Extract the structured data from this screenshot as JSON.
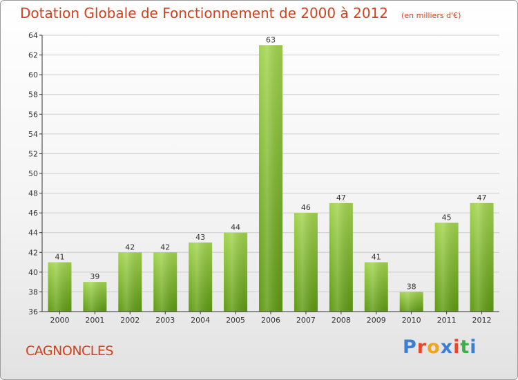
{
  "header": {
    "title": "Dotation Globale de Fonctionnement de 2000 à 2012",
    "subtitle": "(en milliers d'€)"
  },
  "footer": {
    "commune": "CAGNONCLES",
    "brand": "Proxiti",
    "brand_colors": [
      "#3b7fd0",
      "#e8462a",
      "#f0a420",
      "#3b7fd0",
      "#e8462a",
      "#3bb04a",
      "#3b7fd0"
    ]
  },
  "colors": {
    "bar_top": "#a2d44e",
    "bar_bottom": "#5e9a12",
    "title": "#d2401e",
    "grid": "#cccccc",
    "axis": "#333333"
  },
  "chart_data": {
    "type": "bar",
    "title": "Dotation Globale de Fonctionnement de 2000 à 2012",
    "subtitle": "(en milliers d'€)",
    "categories": [
      "2000",
      "2001",
      "2002",
      "2003",
      "2004",
      "2005",
      "2006",
      "2007",
      "2008",
      "2009",
      "2010",
      "2011",
      "2012"
    ],
    "values": [
      41,
      39,
      42,
      42,
      43,
      44,
      63,
      46,
      47,
      41,
      38,
      45,
      47
    ],
    "data_labels": [
      "41",
      "39",
      "42",
      "42",
      "43",
      "44",
      "63",
      "46",
      "47",
      "41",
      "38",
      "45",
      "47"
    ],
    "yticks": [
      "36",
      "38",
      "40",
      "42",
      "44",
      "46",
      "48",
      "50",
      "52",
      "54",
      "56",
      "58",
      "60",
      "62",
      "64"
    ],
    "ylim": [
      36,
      64
    ],
    "grid": true,
    "legend": false
  }
}
